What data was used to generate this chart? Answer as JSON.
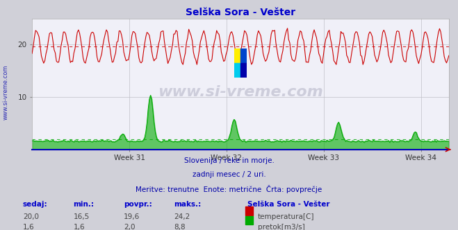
{
  "title": "Selška Sora - Vešter",
  "title_color": "#0000cc",
  "bg_color": "#d0d0d8",
  "plot_bg_color": "#f0f0f8",
  "grid_color": "#c0c0c8",
  "temp_color": "#cc0000",
  "flow_color": "#00aa00",
  "axis_color": "#0000bb",
  "week_labels": [
    "Week 31",
    "Week 32",
    "Week 33",
    "Week 34"
  ],
  "ylim": [
    0,
    25
  ],
  "yticks": [
    10,
    20
  ],
  "subtitle1": "Slovenija / reke in morje.",
  "subtitle2": "zadnji mesec / 2 uri.",
  "subtitle3": "Meritve: trenutne  Enote: metrične  Črta: povprečje",
  "subtitle_color": "#0000aa",
  "table_header_color": "#0000cc",
  "table_value_color": "#444444",
  "sedaj_temp": "20,0",
  "min_temp": "16,5",
  "povpr_temp": "19,6",
  "maks_temp": "24,2",
  "sedaj_flow": "1,6",
  "min_flow": "1,6",
  "povpr_flow": "2,0",
  "maks_flow": "8,8",
  "n_points": 360,
  "temp_min": 16.5,
  "temp_max": 24.2,
  "temp_avg": 19.6,
  "flow_avg": 2.0,
  "flow_max": 8.8,
  "watermark": "www.si-vreme.com",
  "days": 30,
  "week_day_offsets": [
    7,
    14,
    21,
    28
  ]
}
